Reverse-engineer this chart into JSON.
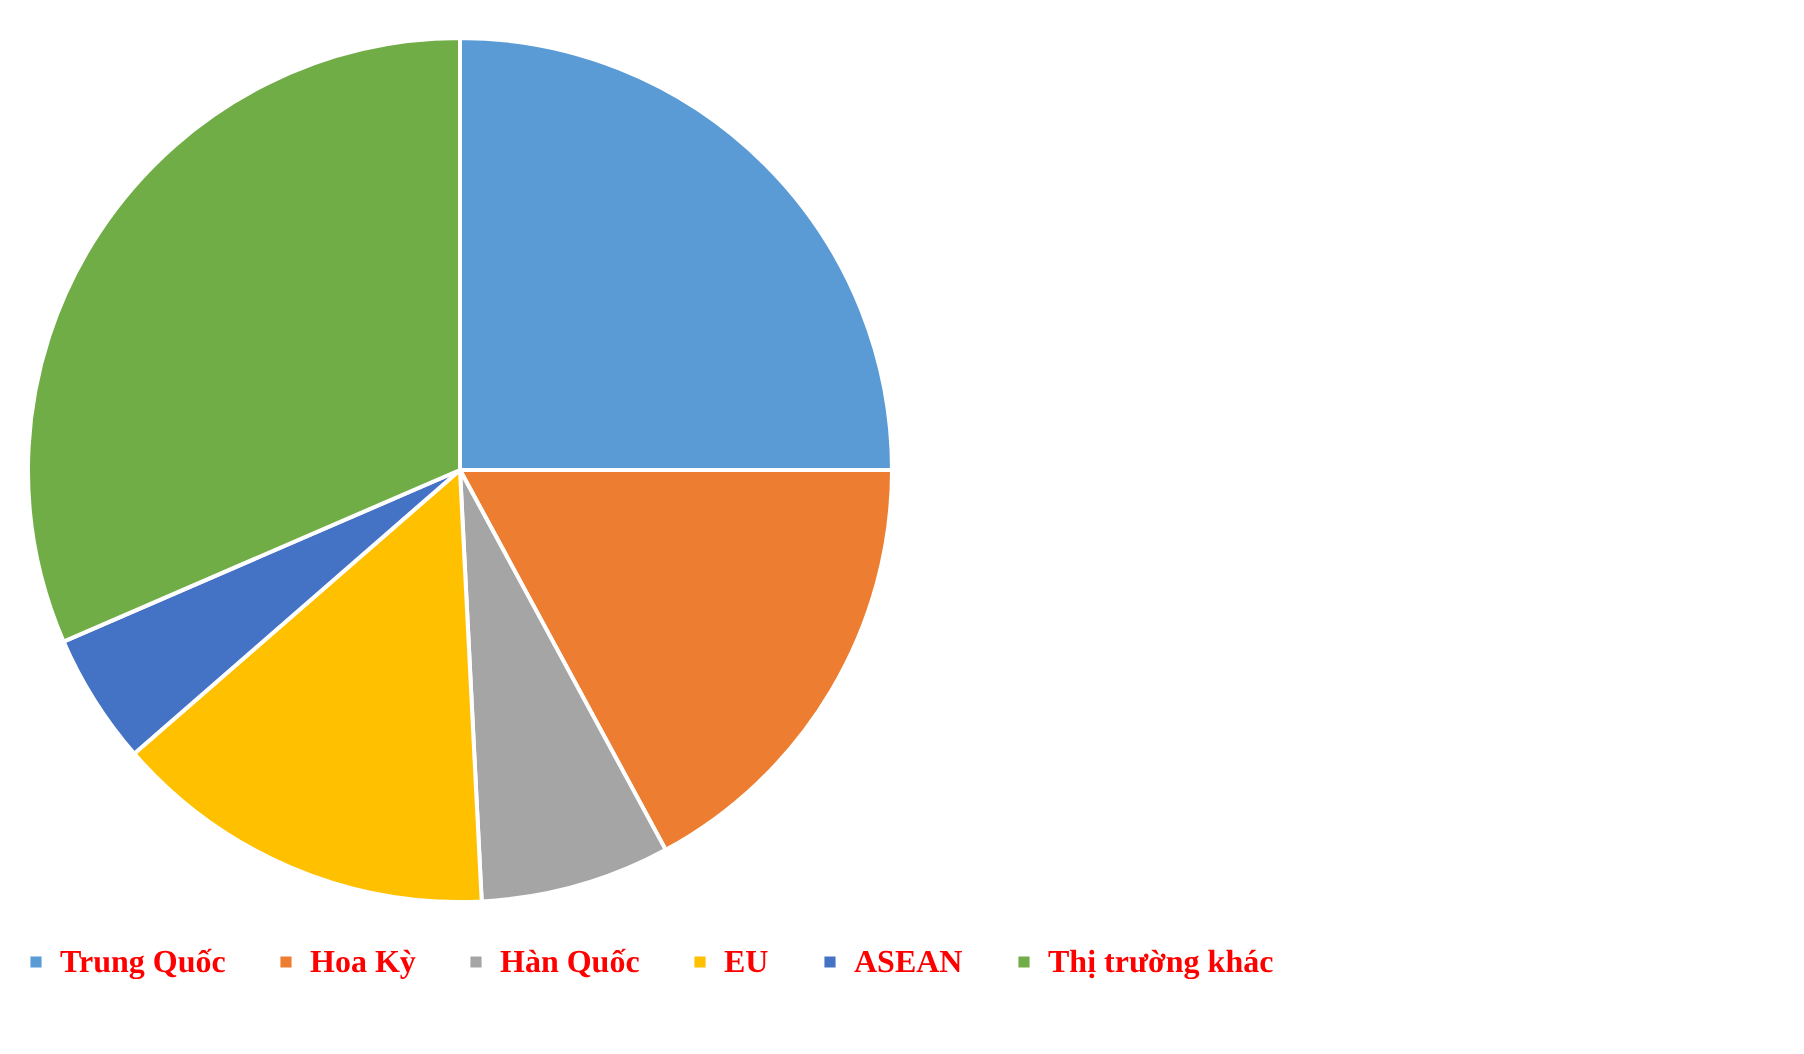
{
  "chart_data": {
    "type": "pie",
    "categories": [
      "Trung Quốc",
      "Hoa Kỳ",
      "Hàn Quốc",
      "EU",
      "ASEAN",
      "Thị trường khác"
    ],
    "values": [
      25,
      17.1,
      7.1,
      14.4,
      4.9,
      31.5
    ],
    "colors": [
      "#5b9bd5",
      "#ed7d31",
      "#a5a5a5",
      "#ffc000",
      "#4472c4",
      "#70ad47"
    ],
    "legend": "bottom"
  }
}
